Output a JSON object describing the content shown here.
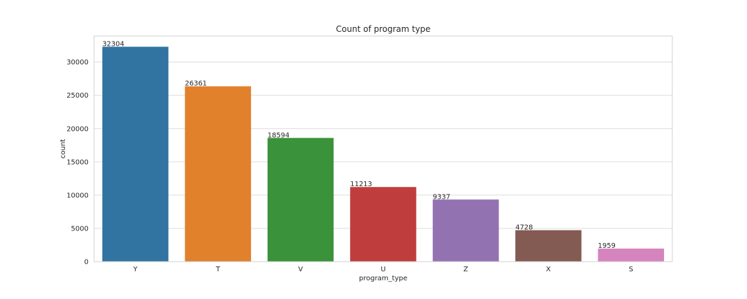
{
  "chart_data": {
    "type": "bar",
    "title": "Count of program type",
    "xlabel": "program_type",
    "ylabel": "count",
    "categories": [
      "Y",
      "T",
      "V",
      "U",
      "Z",
      "X",
      "S"
    ],
    "values": [
      32304,
      26361,
      18594,
      11213,
      9337,
      4728,
      1959
    ],
    "data_labels": [
      "32304",
      "26361",
      "18594",
      "11213",
      "9337",
      "4728",
      "1959"
    ],
    "colors": [
      "#3274a1",
      "#e1812c",
      "#3a923a",
      "#c03d3e",
      "#9372b2",
      "#845b53",
      "#d684bd"
    ],
    "yticks": [
      0,
      5000,
      10000,
      15000,
      20000,
      25000,
      30000
    ],
    "ylim": [
      0,
      33919
    ],
    "grid": true,
    "legend": "none"
  }
}
